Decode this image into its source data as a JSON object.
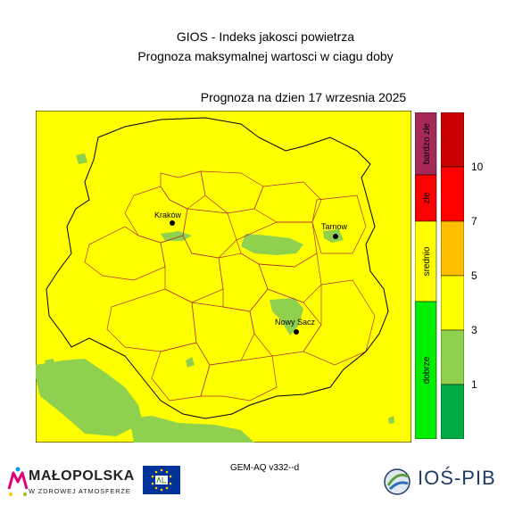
{
  "header": {
    "title_line1": "GIOS - Indeks jakosci powietrza",
    "title_line2": "Prognoza maksymalnej wartosci w ciagu doby",
    "forecast_date": "Prognoza na dzien  17 wrzesnia 2025"
  },
  "map": {
    "cities": [
      {
        "name": "Kraków"
      },
      {
        "name": "Tarnow"
      },
      {
        "name": "Nowy Sacz"
      }
    ],
    "colors": {
      "background": "#ffff00",
      "dobry_zone": "#8fd14f",
      "border": "#000000",
      "district_border": "#b03030"
    }
  },
  "legend": {
    "categories": [
      {
        "label": "bardzo złe",
        "color": "#a52a5a"
      },
      {
        "label": "złe",
        "color": "#ff0000"
      },
      {
        "label": "srednio",
        "color": "#ffff00"
      },
      {
        "label": "dobrze",
        "color": "#00ee00"
      }
    ],
    "scale": [
      {
        "color": "#c80000"
      },
      {
        "color": "#ff0000"
      },
      {
        "color": "#ffbf00"
      },
      {
        "color": "#ffff00"
      },
      {
        "color": "#8fd14f"
      },
      {
        "color": "#00aa44"
      }
    ],
    "ticks": [
      "10",
      "7",
      "5",
      "3",
      "1"
    ]
  },
  "footer": {
    "model": "GEM-AQ v332--d",
    "malopolska_name": "MAŁOPOLSKA",
    "malopolska_slogan": "W ZDROWEJ ATMOSFERZE",
    "ios_name": "IOŚ-PIB"
  }
}
